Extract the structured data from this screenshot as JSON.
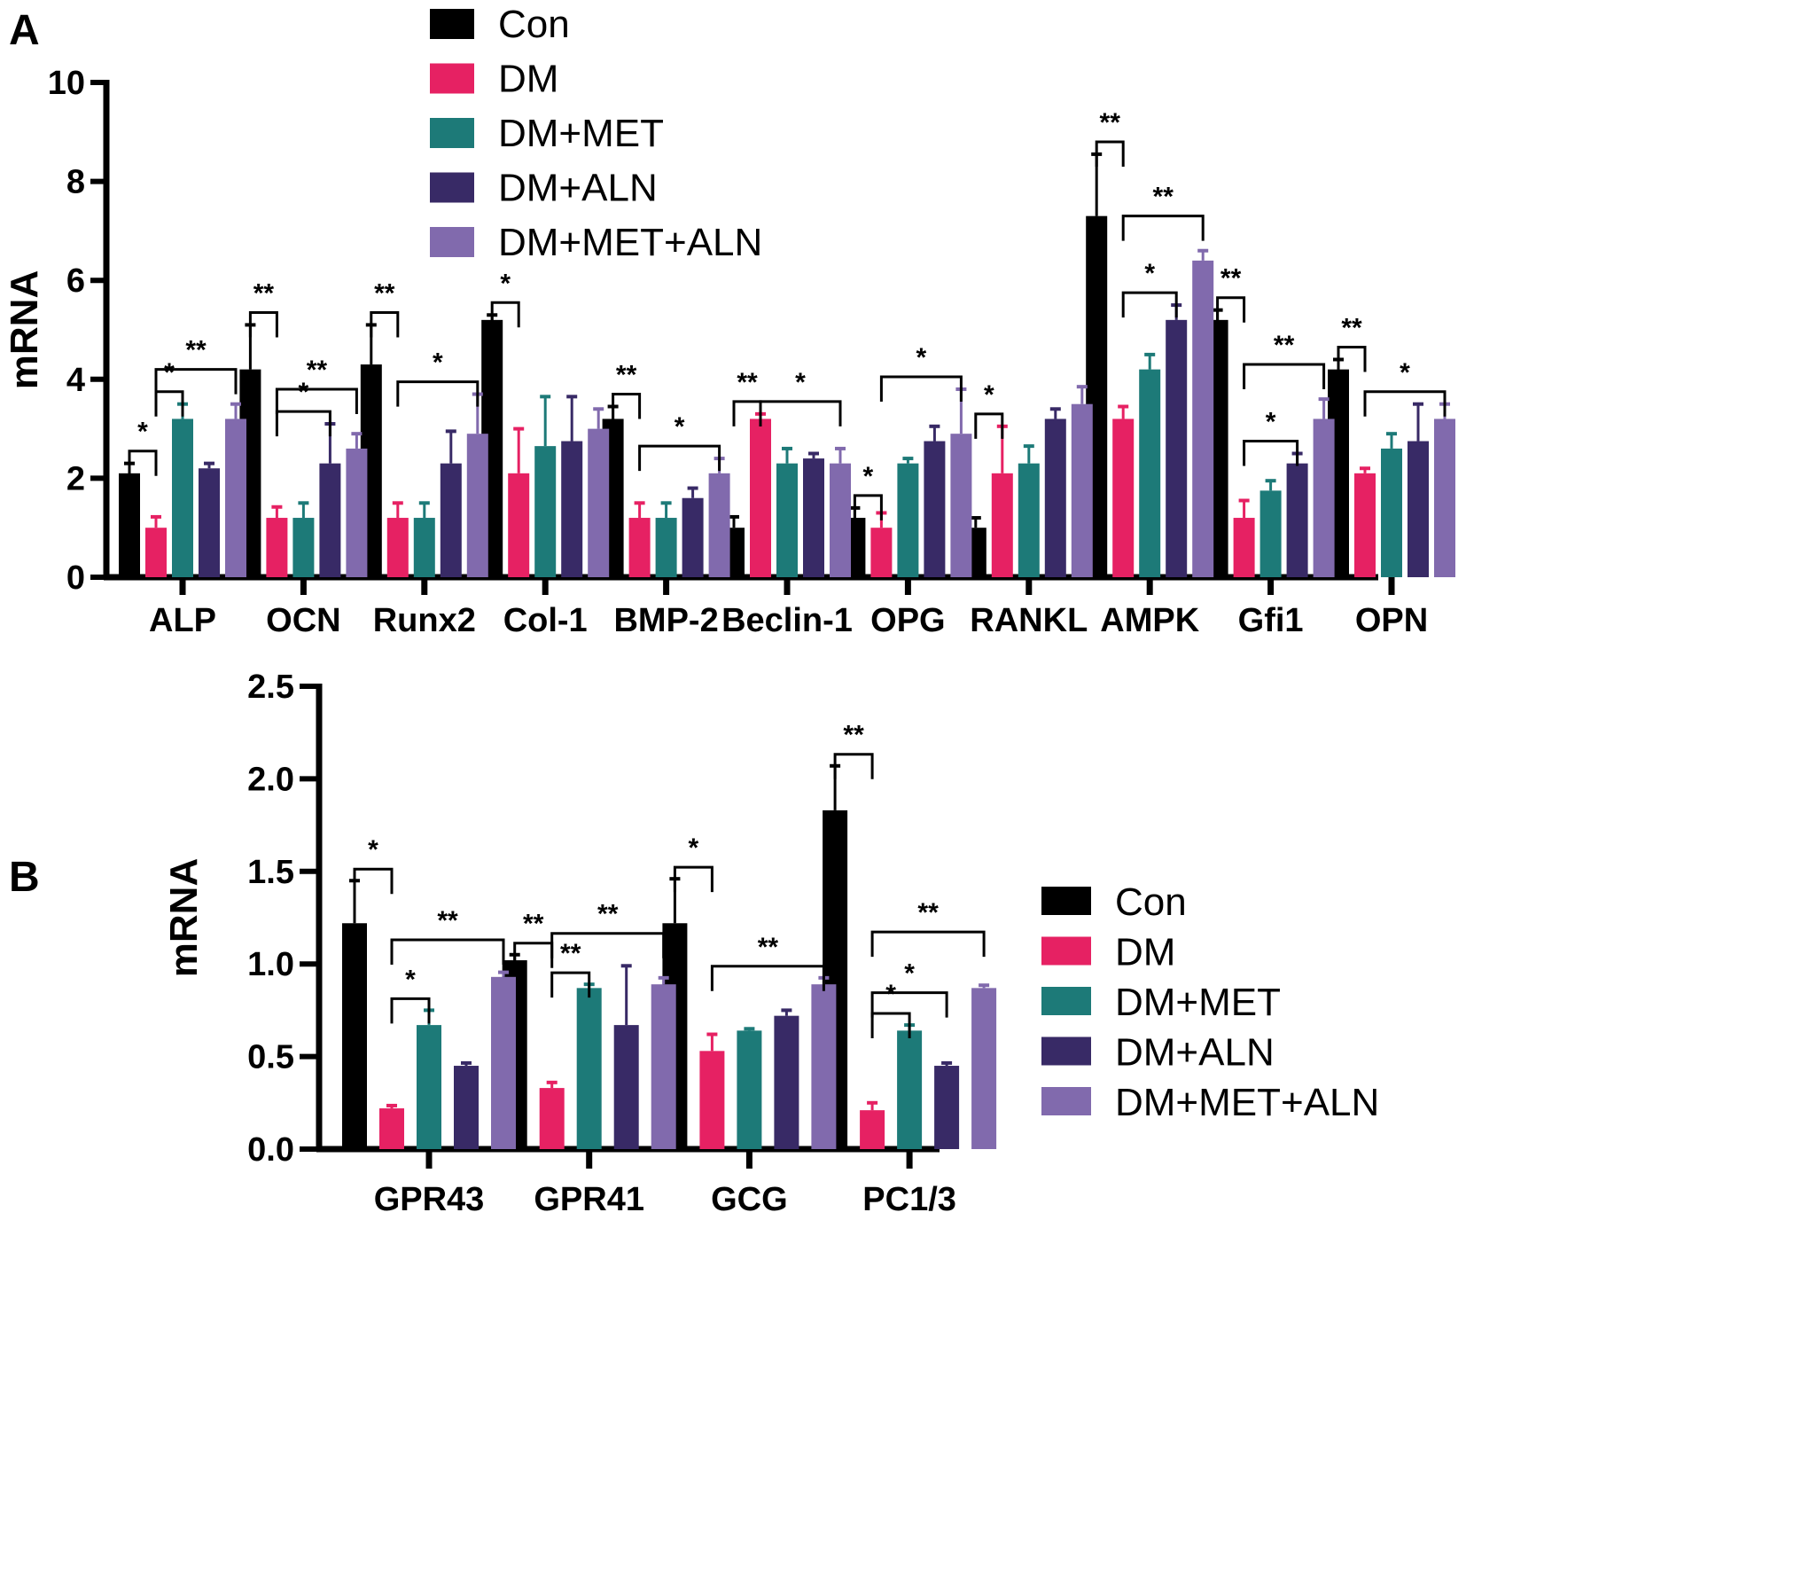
{
  "figure": {
    "colors": {
      "Con": "#000000",
      "DM": "#e62163",
      "DM+MET": "#1d7a78",
      "DM+ALN": "#382a66",
      "DM+MET+ALN": "#816aad"
    }
  },
  "chart_data": [
    {
      "panel": "A",
      "type": "bar",
      "ylabel": "mRNA",
      "xlabel": "",
      "ylim": [
        0,
        10
      ],
      "yticks": [
        "0",
        "2",
        "4",
        "6",
        "8",
        "10"
      ],
      "yticks_values": [
        0,
        2,
        4,
        6,
        8,
        10
      ],
      "legend": [
        "Con",
        "DM",
        "DM+MET",
        "DM+ALN",
        "DM+MET+ALN"
      ],
      "legend_position": "top-center",
      "categories": [
        "ALP",
        "OCN",
        "Runx2",
        "Col-1",
        "BMP-2",
        "Beclin-1",
        "OPG",
        "RANKL",
        "AMPK",
        "Gfi1",
        "OPN"
      ],
      "series": [
        {
          "name": "Con",
          "values": [
            2.1,
            4.2,
            4.3,
            5.2,
            3.2,
            1.0,
            1.2,
            1.0,
            7.3,
            5.2,
            4.2
          ],
          "errors": [
            0.2,
            0.9,
            0.8,
            0.1,
            0.25,
            0.22,
            0.2,
            0.2,
            1.25,
            0.2,
            0.2
          ]
        },
        {
          "name": "DM",
          "values": [
            1.0,
            1.2,
            1.2,
            2.1,
            1.2,
            3.2,
            1.0,
            2.1,
            3.2,
            1.2,
            2.1
          ],
          "errors": [
            0.22,
            0.22,
            0.3,
            0.9,
            0.3,
            0.1,
            0.3,
            0.95,
            0.25,
            0.35,
            0.1
          ]
        },
        {
          "name": "DM+MET",
          "values": [
            3.2,
            1.2,
            1.2,
            2.65,
            1.2,
            2.3,
            2.3,
            2.3,
            4.2,
            1.75,
            2.6
          ]
        },
        {
          "name": "DM+ALN",
          "values": [
            2.2,
            2.3,
            2.3,
            2.75,
            1.6,
            2.4,
            2.75,
            3.2,
            5.2,
            2.3,
            2.75
          ]
        },
        {
          "name": "DM+MET+ALN",
          "values": [
            3.2,
            2.6,
            2.9,
            3.0,
            2.1,
            2.3,
            2.9,
            3.5,
            6.4,
            3.2,
            3.2
          ]
        }
      ],
      "errors_by_series": {
        "DM+MET": [
          0.3,
          0.3,
          0.3,
          1.0,
          0.3,
          0.3,
          0.1,
          0.35,
          0.3,
          0.2,
          0.3
        ],
        "DM+ALN": [
          0.1,
          0.8,
          0.65,
          0.9,
          0.2,
          0.1,
          0.3,
          0.2,
          0.3,
          0.2,
          0.75
        ],
        "DM+MET+ALN": [
          0.3,
          0.3,
          0.8,
          0.4,
          0.3,
          0.3,
          0.9,
          0.35,
          0.2,
          0.4,
          0.3
        ]
      },
      "significance": [
        {
          "category": "ALP",
          "from": "Con",
          "to": "DM",
          "label": "*"
        },
        {
          "category": "ALP",
          "from": "DM",
          "to": "DM+MET",
          "label": "*"
        },
        {
          "category": "ALP",
          "from": "DM",
          "to": "DM+MET+ALN",
          "label": "**"
        },
        {
          "category": "OCN",
          "from": "Con",
          "to": "DM",
          "label": "**"
        },
        {
          "category": "OCN",
          "from": "DM",
          "to": "DM+ALN",
          "label": "*"
        },
        {
          "category": "OCN",
          "from": "DM",
          "to": "DM+MET+ALN",
          "label": "**"
        },
        {
          "category": "Runx2",
          "from": "Con",
          "to": "DM",
          "label": "**"
        },
        {
          "category": "Runx2",
          "from": "DM",
          "to": "DM+MET+ALN",
          "label": "*"
        },
        {
          "category": "Col-1",
          "from": "Con",
          "to": "DM",
          "label": "*"
        },
        {
          "category": "BMP-2",
          "from": "Con",
          "to": "DM",
          "label": "**"
        },
        {
          "category": "BMP-2",
          "from": "DM",
          "to": "DM+MET+ALN",
          "label": "*"
        },
        {
          "category": "Beclin-1",
          "from": "Con",
          "to": "DM",
          "label": "**"
        },
        {
          "category": "Beclin-1",
          "from": "DM",
          "to": "DM+MET+ALN",
          "label": "*"
        },
        {
          "category": "OPG",
          "from": "Con",
          "to": "DM",
          "label": "*"
        },
        {
          "category": "OPG",
          "from": "DM",
          "to": "DM+MET+ALN",
          "label": "*"
        },
        {
          "category": "RANKL",
          "from": "Con",
          "to": "DM",
          "label": "*"
        },
        {
          "category": "AMPK",
          "from": "Con",
          "to": "DM",
          "label": "**"
        },
        {
          "category": "AMPK",
          "from": "DM",
          "to": "DM+ALN",
          "label": "*"
        },
        {
          "category": "AMPK",
          "from": "DM",
          "to": "DM+MET+ALN",
          "label": "**"
        },
        {
          "category": "Gfi1",
          "from": "Con",
          "to": "DM",
          "label": "**"
        },
        {
          "category": "Gfi1",
          "from": "DM",
          "to": "DM+ALN",
          "label": "*"
        },
        {
          "category": "Gfi1",
          "from": "DM",
          "to": "DM+MET+ALN",
          "label": "**"
        },
        {
          "category": "OPN",
          "from": "Con",
          "to": "DM",
          "label": "**"
        },
        {
          "category": "OPN",
          "from": "DM",
          "to": "DM+MET+ALN",
          "label": "*"
        }
      ],
      "grid": false
    },
    {
      "panel": "B",
      "type": "bar",
      "ylabel": "mRNA",
      "xlabel": "",
      "ylim": [
        0,
        2.5
      ],
      "yticks": [
        "0.0",
        "0.5",
        "1.0",
        "1.5",
        "2.0",
        "2.5"
      ],
      "yticks_values": [
        0,
        0.5,
        1.0,
        1.5,
        2.0,
        2.5
      ],
      "legend": [
        "Con",
        "DM",
        "DM+MET",
        "DM+ALN",
        "DM+MET+ALN"
      ],
      "legend_position": "right",
      "categories": [
        "GPR43",
        "GPR41",
        "GCG",
        "PC1/3"
      ],
      "series": [
        {
          "name": "Con",
          "values": [
            1.22,
            1.02,
            1.22,
            1.83
          ],
          "errors": [
            0.23,
            0.03,
            0.24,
            0.24
          ]
        },
        {
          "name": "DM",
          "values": [
            0.22,
            0.33,
            0.53,
            0.21
          ],
          "errors": [
            0.015,
            0.03,
            0.09,
            0.04
          ]
        },
        {
          "name": "DM+MET",
          "values": [
            0.67,
            0.87,
            0.64,
            0.64
          ],
          "errors": [
            0.08,
            0.02,
            0.01,
            0.03
          ]
        },
        {
          "name": "DM+ALN",
          "values": [
            0.45,
            0.67,
            0.72,
            0.45
          ],
          "errors": [
            0.015,
            0.32,
            0.03,
            0.015
          ]
        },
        {
          "name": "DM+MET+ALN",
          "values": [
            0.93,
            0.89,
            0.89,
            0.87
          ],
          "errors": [
            0.025,
            0.035,
            0.035,
            0.015
          ]
        }
      ],
      "significance": [
        {
          "category": "GPR43",
          "from": "Con",
          "to": "DM",
          "label": "*"
        },
        {
          "category": "GPR43",
          "from": "DM",
          "to": "DM+MET",
          "label": "*"
        },
        {
          "category": "GPR43",
          "from": "DM",
          "to": "DM+MET+ALN",
          "label": "**"
        },
        {
          "category": "GPR41",
          "from": "Con",
          "to": "DM",
          "label": "**"
        },
        {
          "category": "GPR41",
          "from": "DM",
          "to": "DM+MET",
          "label": "**"
        },
        {
          "category": "GPR41",
          "from": "DM",
          "to": "DM+MET+ALN",
          "label": "**"
        },
        {
          "category": "GCG",
          "from": "Con",
          "to": "DM",
          "label": "*"
        },
        {
          "category": "GCG",
          "from": "DM",
          "to": "DM+MET+ALN",
          "label": "**"
        },
        {
          "category": "PC1/3",
          "from": "Con",
          "to": "DM",
          "label": "**"
        },
        {
          "category": "PC1/3",
          "from": "DM",
          "to": "DM+MET",
          "label": "*"
        },
        {
          "category": "PC1/3",
          "from": "DM",
          "to": "DM+ALN",
          "label": "*"
        },
        {
          "category": "PC1/3",
          "from": "DM",
          "to": "DM+MET+ALN",
          "label": "**"
        }
      ],
      "grid": false
    }
  ],
  "panels": {
    "A": {
      "label": "A"
    },
    "B": {
      "label": "B"
    }
  }
}
